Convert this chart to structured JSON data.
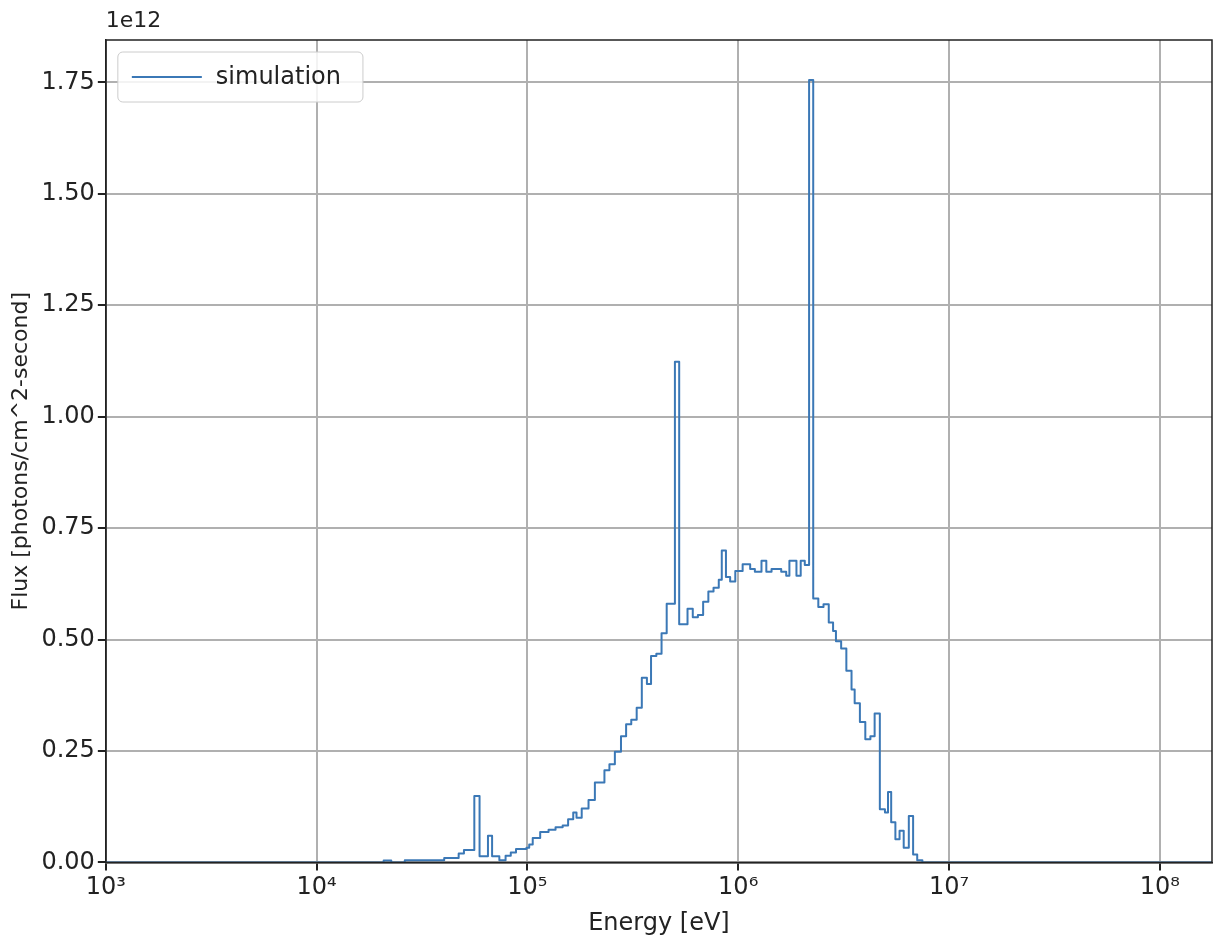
{
  "chart_data": {
    "type": "step",
    "xlabel": "Energy [eV]",
    "ylabel": "Flux [photons/cm^2-second]",
    "annotations": [
      "1e12"
    ],
    "x": [
      1000,
      20800,
      22600,
      26200,
      40300,
      47200,
      50000,
      56000,
      59300,
      65000,
      68000,
      73600,
      78800,
      83400,
      88300,
      99000,
      102000,
      106000,
      115000,
      126000,
      136000,
      147000,
      156000,
      165000,
      171000,
      181000,
      195000,
      209000,
      232000,
      245000,
      260000,
      278000,
      294000,
      311000,
      330000,
      349000,
      369000,
      386000,
      409000,
      433000,
      458000,
      501000,
      525000,
      575000,
      609000,
      644000,
      682000,
      722000,
      764000,
      809000,
      836000,
      875000,
      916000,
      969000,
      1050000,
      1140000,
      1200000,
      1290000,
      1360000,
      1440000,
      1600000,
      1690000,
      1750000,
      1890000,
      1980000,
      2070000,
      2170000,
      2270000,
      2400000,
      2540000,
      2690000,
      2820000,
      2910000,
      3080000,
      3260000,
      3450000,
      3570000,
      3780000,
      4010000,
      4240000,
      4440000,
      4700000,
      4970000,
      5140000,
      5320000,
      5570000,
      5830000,
      6100000,
      6450000,
      6760000,
      7070000,
      7480000,
      177000000
    ],
    "series": [
      {
        "name": "simulation",
        "color": "#3b78b6",
        "values": [
          0,
          0.004,
          0,
          0.005,
          0.01,
          0.02,
          0.028,
          0.149,
          0.014,
          0.06,
          0.014,
          0.005,
          0.015,
          0.022,
          0.03,
          0.033,
          0.04,
          0.055,
          0.068,
          0.073,
          0.079,
          0.083,
          0.097,
          0.112,
          0.1,
          0.121,
          0.14,
          0.179,
          0.207,
          0.22,
          0.248,
          0.283,
          0.31,
          0.32,
          0.347,
          0.414,
          0.4,
          0.463,
          0.468,
          0.514,
          0.58,
          1.123,
          0.534,
          0.569,
          0.55,
          0.555,
          0.585,
          0.608,
          0.616,
          0.634,
          0.7,
          0.64,
          0.63,
          0.654,
          0.669,
          0.658,
          0.652,
          0.677,
          0.652,
          0.658,
          0.652,
          0.643,
          0.677,
          0.643,
          0.677,
          0.667,
          1.755,
          0.592,
          0.573,
          0.579,
          0.538,
          0.519,
          0.496,
          0.48,
          0.43,
          0.388,
          0.357,
          0.315,
          0.276,
          0.283,
          0.334,
          0.119,
          0.112,
          0.158,
          0.09,
          0.052,
          0.071,
          0.033,
          0.104,
          0.018,
          0.005,
          0,
          0
        ]
      }
    ],
    "log": "x",
    "xlim": [
      1000,
      177000000
    ],
    "ylim": [
      0,
      1.845
    ],
    "xticks": [
      {
        "value": 1000,
        "label": "10³"
      },
      {
        "value": 10000,
        "label": "10⁴"
      },
      {
        "value": 100000,
        "label": "10⁵"
      },
      {
        "value": 1000000,
        "label": "10⁶"
      },
      {
        "value": 10000000,
        "label": "10⁷"
      },
      {
        "value": 100000000,
        "label": "10⁸"
      }
    ],
    "yticks": [
      {
        "value": 0,
        "label": "0.00"
      },
      {
        "value": 0.25,
        "label": "0.25"
      },
      {
        "value": 0.5,
        "label": "0.50"
      },
      {
        "value": 0.75,
        "label": "0.75"
      },
      {
        "value": 1,
        "label": "1.00"
      },
      {
        "value": 1.25,
        "label": "1.25"
      },
      {
        "value": 1.5,
        "label": "1.50"
      },
      {
        "value": 1.75,
        "label": "1.75"
      }
    ],
    "grid": true,
    "legend": "top left",
    "line_style": "solid",
    "marker": "none"
  }
}
